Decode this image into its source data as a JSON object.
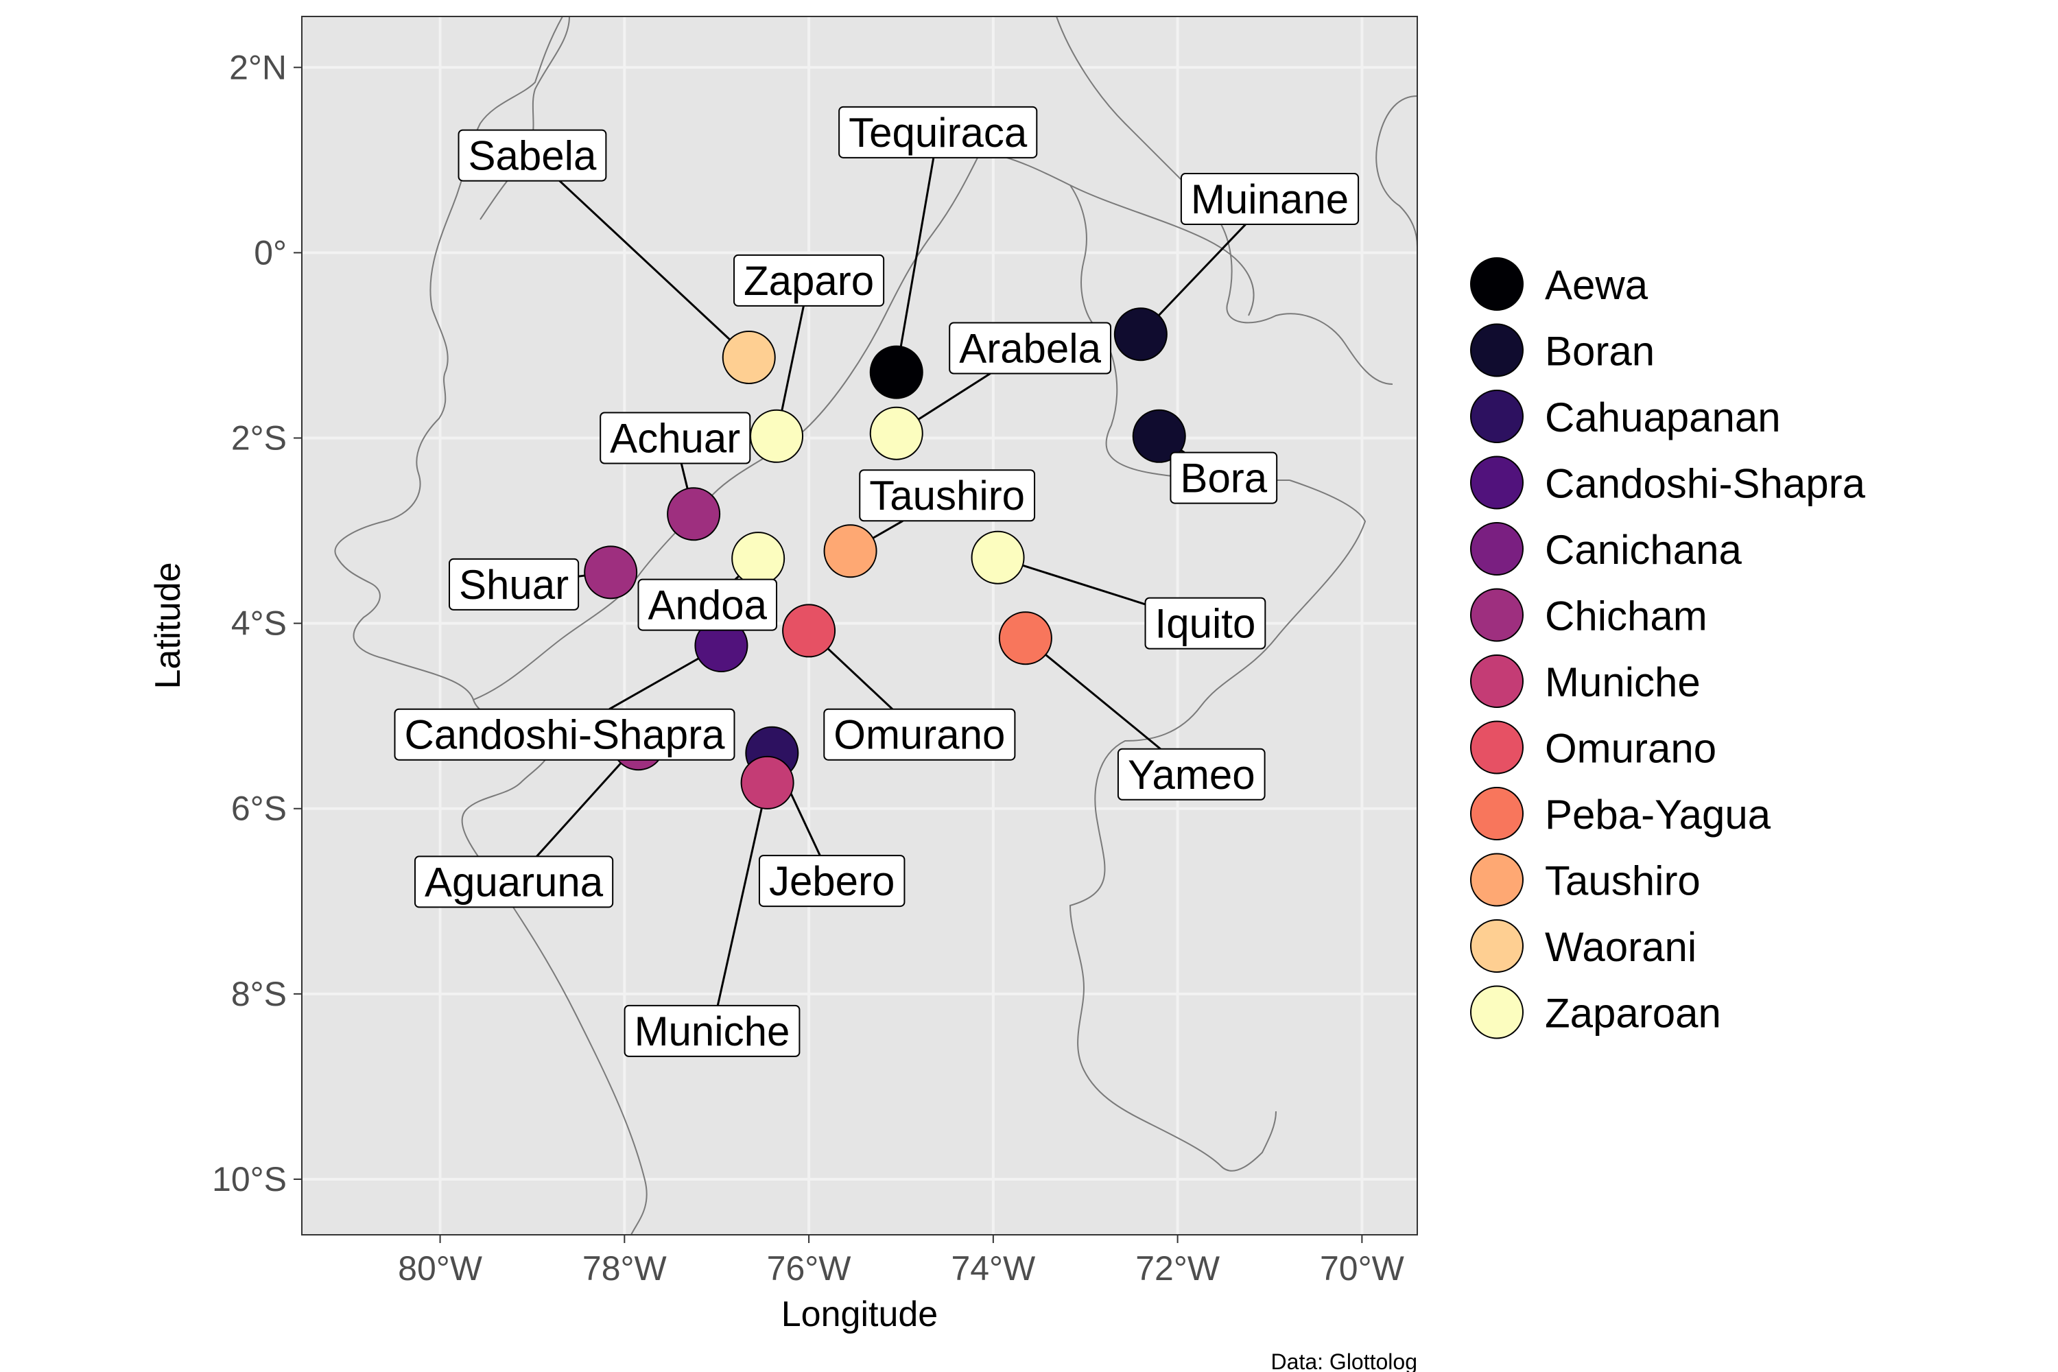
{
  "map": {
    "xlabel": "Longitude",
    "ylabel": "Latitude",
    "caption": "Data: Glottolog",
    "xlim": [
      -81.5,
      -69.4
    ],
    "ylim": [
      -10.6,
      2.55
    ],
    "grid": true,
    "background_color": "#e5e5e5",
    "border_color": "#7a7a7a",
    "x_ticks": [
      {
        "value": -80,
        "label": "80°W"
      },
      {
        "value": -78,
        "label": "78°W"
      },
      {
        "value": -76,
        "label": "76°W"
      },
      {
        "value": -74,
        "label": "74°W"
      },
      {
        "value": -72,
        "label": "72°W"
      },
      {
        "value": -70,
        "label": "70°W"
      }
    ],
    "y_ticks": [
      {
        "value": 2,
        "label": "2°N"
      },
      {
        "value": 0,
        "label": "0°"
      },
      {
        "value": -2,
        "label": "2°S"
      },
      {
        "value": -4,
        "label": "4°S"
      },
      {
        "value": -6,
        "label": "6°S"
      },
      {
        "value": -8,
        "label": "8°S"
      },
      {
        "value": -10,
        "label": "10°S"
      }
    ]
  },
  "legend": {
    "placement": "right",
    "items": [
      {
        "name": "Aewa",
        "color": "#000004"
      },
      {
        "name": "Boran",
        "color": "#100c2f"
      },
      {
        "name": "Cahuapanan",
        "color": "#2d1160"
      },
      {
        "name": "Candoshi-Shapra",
        "color": "#51127c"
      },
      {
        "name": "Canichana",
        "color": "#7a1f81"
      },
      {
        "name": "Chicham",
        "color": "#9e2f7f"
      },
      {
        "name": "Muniche",
        "color": "#c43c75"
      },
      {
        "name": "Omurano",
        "color": "#e65164"
      },
      {
        "name": "Peba-Yagua",
        "color": "#f8765c"
      },
      {
        "name": "Taushiro",
        "color": "#fea873"
      },
      {
        "name": "Waorani",
        "color": "#fecf92"
      },
      {
        "name": "Zaparoan",
        "color": "#fcfdbf"
      }
    ]
  },
  "chart_data": {
    "type": "scatter",
    "xlabel": "Longitude",
    "ylabel": "Latitude",
    "xlim": [
      -81.5,
      -69.4
    ],
    "ylim": [
      -10.6,
      2.55
    ],
    "grid": true,
    "legend": "right",
    "points": [
      {
        "label": "Sabela",
        "family": "Waorani",
        "lon": -76.65,
        "lat": -1.13
      },
      {
        "label": "Zaparo",
        "family": "Zaparoan",
        "lon": -76.35,
        "lat": -1.98
      },
      {
        "label": "Tequiraca",
        "family": "Aewa",
        "lon": -75.05,
        "lat": -1.29
      },
      {
        "label": "Arabela",
        "family": "Zaparoan",
        "lon": -75.05,
        "lat": -1.95
      },
      {
        "label": "Muinane",
        "family": "Boran",
        "lon": -72.4,
        "lat": -0.88
      },
      {
        "label": "Bora",
        "family": "Boran",
        "lon": -72.2,
        "lat": -1.98
      },
      {
        "label": "Achuar",
        "family": "Chicham",
        "lon": -77.25,
        "lat": -2.82
      },
      {
        "label": "Andoa",
        "family": "Zaparoan",
        "lon": -76.55,
        "lat": -3.3
      },
      {
        "label": "Taushiro",
        "family": "Taushiro",
        "lon": -75.55,
        "lat": -3.22
      },
      {
        "label": "Iquito",
        "family": "Zaparoan",
        "lon": -73.95,
        "lat": -3.29
      },
      {
        "label": "Shuar",
        "family": "Chicham",
        "lon": -78.15,
        "lat": -3.45
      },
      {
        "label": "Candoshi-Shapra",
        "family": "Candoshi-Shapra",
        "lon": -76.95,
        "lat": -4.24
      },
      {
        "label": "Omurano",
        "family": "Omurano",
        "lon": -76.0,
        "lat": -4.08
      },
      {
        "label": "Yameo",
        "family": "Peba-Yagua",
        "lon": -73.65,
        "lat": -4.16
      },
      {
        "label": "Aguaruna",
        "family": "Chicham",
        "lon": -77.85,
        "lat": -5.3
      },
      {
        "label": "Jebero",
        "family": "Cahuapanan",
        "lon": -76.4,
        "lat": -5.4
      },
      {
        "label": "Muniche",
        "family": "Muniche",
        "lon": -76.45,
        "lat": -5.72
      }
    ],
    "label_anchors": [
      {
        "label": "Sabela",
        "lon": -79.0,
        "lat": 1.05
      },
      {
        "label": "Zaparo",
        "lon": -76.0,
        "lat": -0.3
      },
      {
        "label": "Tequiraca",
        "lon": -74.6,
        "lat": 1.3
      },
      {
        "label": "Arabela",
        "lon": -73.6,
        "lat": -1.03
      },
      {
        "label": "Muinane",
        "lon": -71.0,
        "lat": 0.58
      },
      {
        "label": "Bora",
        "lon": -71.5,
        "lat": -2.43
      },
      {
        "label": "Achuar",
        "lon": -77.45,
        "lat": -2.0
      },
      {
        "label": "Andoa",
        "lon": -77.1,
        "lat": -3.8
      },
      {
        "label": "Taushiro",
        "lon": -74.5,
        "lat": -2.62
      },
      {
        "label": "Iquito",
        "lon": -71.7,
        "lat": -4.0
      },
      {
        "label": "Shuar",
        "lon": -79.2,
        "lat": -3.58
      },
      {
        "label": "Candoshi-Shapra",
        "lon": -78.65,
        "lat": -5.2
      },
      {
        "label": "Omurano",
        "lon": -74.8,
        "lat": -5.2
      },
      {
        "label": "Yameo",
        "lon": -71.85,
        "lat": -5.63
      },
      {
        "label": "Aguaruna",
        "lon": -79.2,
        "lat": -6.79
      },
      {
        "label": "Jebero",
        "lon": -75.75,
        "lat": -6.78
      },
      {
        "label": "Muniche",
        "lon": -77.05,
        "lat": -8.4
      }
    ]
  }
}
